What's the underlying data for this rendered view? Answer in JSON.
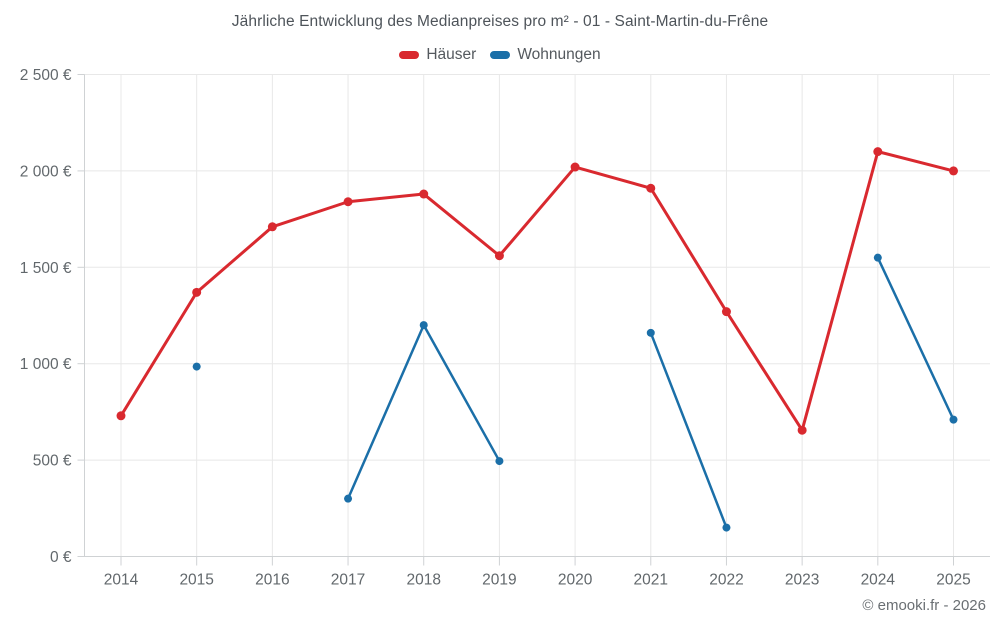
{
  "chart_data": {
    "type": "line",
    "title": "Jährliche Entwicklung des Medianpreises pro m² - 01 - Saint-Martin-du-Frêne",
    "categories": [
      "2014",
      "2015",
      "2016",
      "2017",
      "2018",
      "2019",
      "2020",
      "2021",
      "2022",
      "2023",
      "2024",
      "2025"
    ],
    "series": [
      {
        "name": "Häuser",
        "color": "#d9292f",
        "values": [
          730,
          1370,
          1710,
          1840,
          1880,
          1560,
          2020,
          1910,
          1270,
          655,
          2100,
          2000
        ]
      },
      {
        "name": "Wohnungen",
        "color": "#1b6fa8",
        "values": [
          null,
          985,
          null,
          300,
          1200,
          495,
          null,
          1160,
          150,
          null,
          1550,
          710
        ]
      }
    ],
    "ylim": [
      0,
      2500
    ],
    "ytick_step": 500,
    "ytick_labels": [
      "0 €",
      "500 €",
      "1 000 €",
      "1 500 €",
      "2 000 €",
      "2 500 €"
    ],
    "xlabel": "",
    "ylabel": "",
    "grid": true,
    "legend_position": "top"
  },
  "footer": {
    "credit": "© emooki.fr - 2026"
  },
  "theme": {
    "grid_color": "#e8e8e8",
    "axis_color": "#cfd2d4",
    "tick_color": "#cfd2d4",
    "label_color": "#62686c",
    "title_color": "#4e545a"
  }
}
